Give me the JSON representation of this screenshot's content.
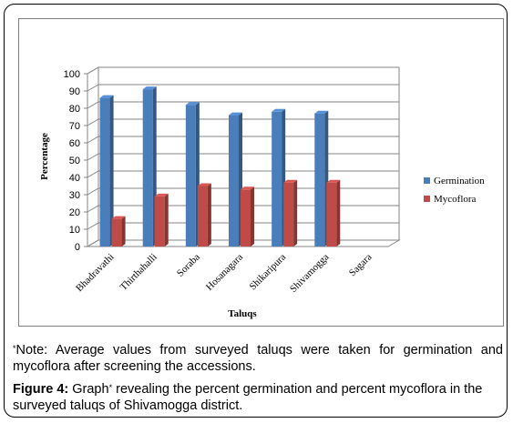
{
  "chart_data": {
    "type": "bar",
    "style": "3d-clustered-column",
    "categories": [
      "Bhadravathi",
      "Thirthahalli",
      "Soraba",
      "Hosanagara",
      "Shikaripura",
      "Shivamogga",
      "Sagara"
    ],
    "series": [
      {
        "name": "Germination",
        "color": "#4a7ebb",
        "values": [
          86,
          91,
          82,
          76,
          78,
          77,
          null
        ]
      },
      {
        "name": "Mycoflora",
        "color": "#be4b48",
        "values": [
          16,
          29,
          35,
          33,
          37,
          37,
          null
        ]
      }
    ],
    "ylabel": "Percentage",
    "xlabel": "Taluqs",
    "ylim": [
      0,
      100
    ],
    "yticks": [
      0,
      10,
      20,
      30,
      40,
      50,
      60,
      70,
      80,
      90,
      100
    ],
    "grid": true,
    "legend_position": "right"
  },
  "note": {
    "marker": "*",
    "text": "Note: Average values from surveyed taluqs were taken for germination and mycoflora after screening the accessions."
  },
  "caption": {
    "label": "Figure 4:",
    "text_before": " Graph",
    "marker": "*",
    "text_after": " revealing the percent germination and percent mycoflora in the surveyed taluqs of Shivamogga district."
  }
}
